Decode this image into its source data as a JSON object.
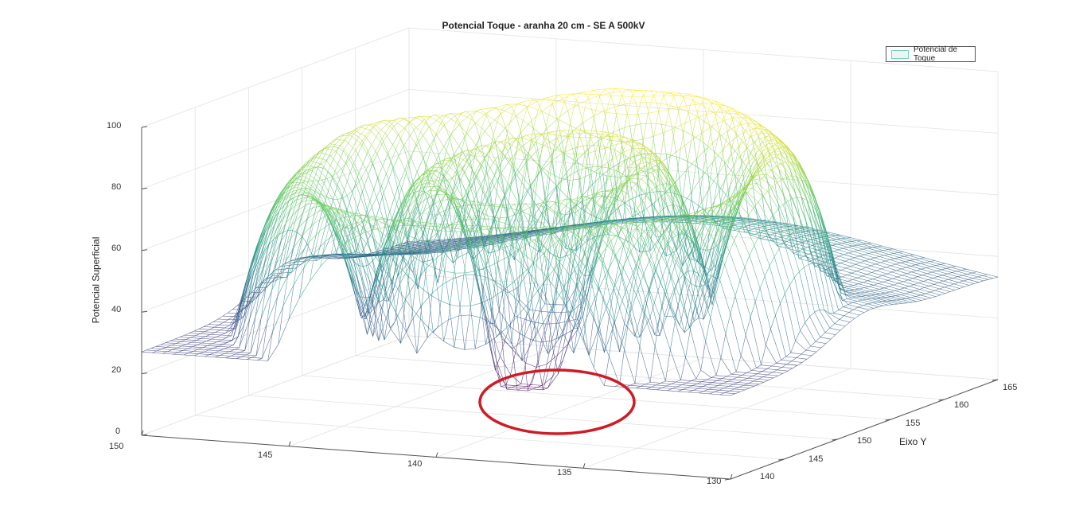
{
  "chart_data": {
    "type": "surface",
    "title": "Potencial Toque - aranha 20 cm - SE A 500kV",
    "zlabel": "Potencial Superficial",
    "ylabel": "Eixo Y",
    "xlabel": "",
    "x_ticks": [
      "150",
      "145",
      "140",
      "135",
      "130"
    ],
    "y_ticks": [
      "140",
      "145",
      "150",
      "155",
      "160",
      "165"
    ],
    "z_ticks": [
      "0",
      "20",
      "40",
      "60",
      "80",
      "100"
    ],
    "xlim": [
      130,
      150
    ],
    "ylim": [
      140,
      165
    ],
    "zlim": [
      0,
      100
    ],
    "legend": {
      "label": "Potencial de Toque",
      "placement": "top-right"
    },
    "grid": true,
    "colormap": "viridis",
    "surface_summary": {
      "peak_z": 95,
      "min_z": 12,
      "minimum_region": {
        "x": 135.5,
        "y": 149,
        "z": 12
      }
    },
    "annotation": {
      "shape": "ellipse",
      "color": "#d01a24",
      "marks": "minimum_region"
    }
  }
}
